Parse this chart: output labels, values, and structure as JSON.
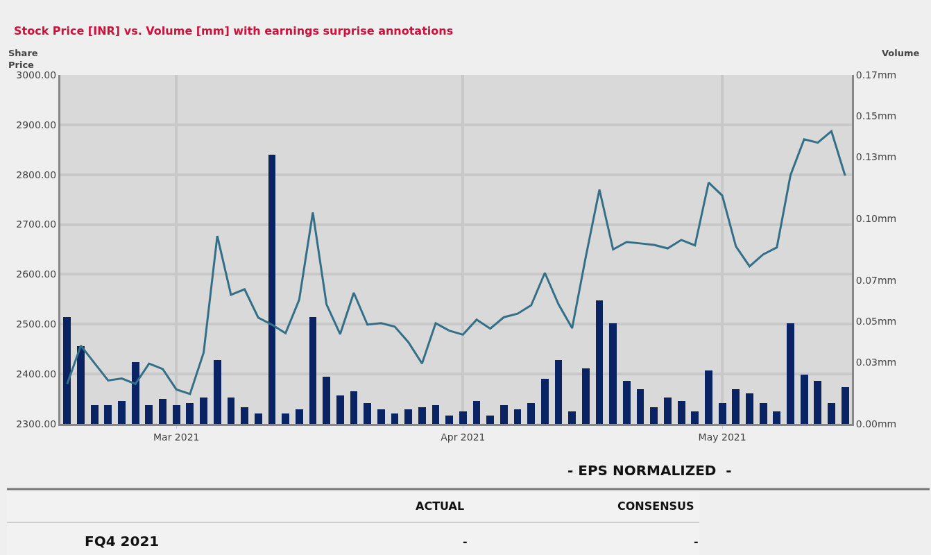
{
  "chart_data": {
    "type": "bar",
    "title": "Stock Price [INR] vs. Volume [mm] with earnings surprise annotations",
    "ylabel": "Share Price",
    "y2label": "Volume",
    "categories": [
      null,
      null,
      null,
      null,
      null,
      null,
      null,
      null,
      "Mar 2021",
      null,
      null,
      null,
      null,
      null,
      null,
      null,
      null,
      null,
      null,
      null,
      null,
      null,
      null,
      null,
      null,
      null,
      null,
      null,
      null,
      "Apr 2021",
      null,
      null,
      null,
      null,
      null,
      null,
      null,
      null,
      null,
      null,
      null,
      null,
      null,
      null,
      null,
      null,
      null,
      null,
      "May 2021",
      null,
      null,
      null,
      null,
      null,
      null,
      null,
      null,
      null
    ],
    "series": [
      {
        "axis": "y2",
        "color": "#0a2463",
        "values": [
          0.052,
          0.038,
          0.009,
          0.009,
          0.011,
          0.03,
          0.009,
          0.012,
          0.009,
          0.01,
          0.013,
          0.031,
          0.013,
          0.008,
          0.005,
          0.131,
          0.005,
          0.007,
          0.052,
          0.023,
          0.014,
          0.016,
          0.01,
          0.007,
          0.005,
          0.007,
          0.008,
          0.009,
          0.004,
          0.006,
          0.011,
          0.004,
          0.009,
          0.007,
          0.01,
          0.022,
          0.031,
          0.006,
          0.027,
          0.06,
          0.049,
          0.021,
          0.017,
          0.008,
          0.013,
          0.011,
          0.006,
          0.026,
          0.01,
          0.017,
          0.015,
          0.01,
          0.006,
          0.049,
          0.024,
          0.021,
          0.01,
          0.018
        ]
      },
      {
        "type": "line",
        "color": "#337087",
        "values": [
          2380,
          2457,
          2422,
          2387,
          2391,
          2380,
          2421,
          2410,
          2369,
          2360,
          2443,
          2677,
          2559,
          2570,
          2513,
          2499,
          2482,
          2549,
          2724,
          2540,
          2480,
          2563,
          2499,
          2502,
          2495,
          2464,
          2421,
          2502,
          2487,
          2479,
          2509,
          2491,
          2514,
          2521,
          2538,
          2603,
          2540,
          2492,
          2635,
          2770,
          2650,
          2665,
          2662,
          2659,
          2652,
          2669,
          2658,
          2784,
          2758,
          2656,
          2616,
          2640,
          2654,
          2799,
          2871,
          2864,
          2887,
          2798
        ]
      }
    ],
    "ylim": [
      2300,
      3000
    ],
    "yticks": [
      {
        "value": 2300,
        "label": "2300.00"
      },
      {
        "value": 2400,
        "label": "2400.00"
      },
      {
        "value": 2500,
        "label": "2500.00"
      },
      {
        "value": 2600,
        "label": "2600.00"
      },
      {
        "value": 2700,
        "label": "2700.00"
      },
      {
        "value": 2800,
        "label": "2800.00"
      },
      {
        "value": 2900,
        "label": "2900.00"
      },
      {
        "value": 3000,
        "label": "3000.00"
      }
    ],
    "y2lim": [
      0,
      0.17
    ],
    "y2ticks": [
      {
        "value": 0,
        "label": "0.00mm"
      },
      {
        "value": 0.03,
        "label": "0.03mm"
      },
      {
        "value": 0.05,
        "label": "0.05mm"
      },
      {
        "value": 0.07,
        "label": "0.07mm"
      },
      {
        "value": 0.1,
        "label": "0.10mm"
      },
      {
        "value": 0.13,
        "label": "0.13mm"
      },
      {
        "value": 0.15,
        "label": "0.15mm"
      },
      {
        "value": 0.17,
        "label": "0.17mm"
      }
    ],
    "grid": true,
    "annotations": [
      "- EPS NORMALIZED  -",
      "ACTUAL",
      "CONSENSUS",
      "FQ4 2021",
      "-",
      "-"
    ]
  }
}
